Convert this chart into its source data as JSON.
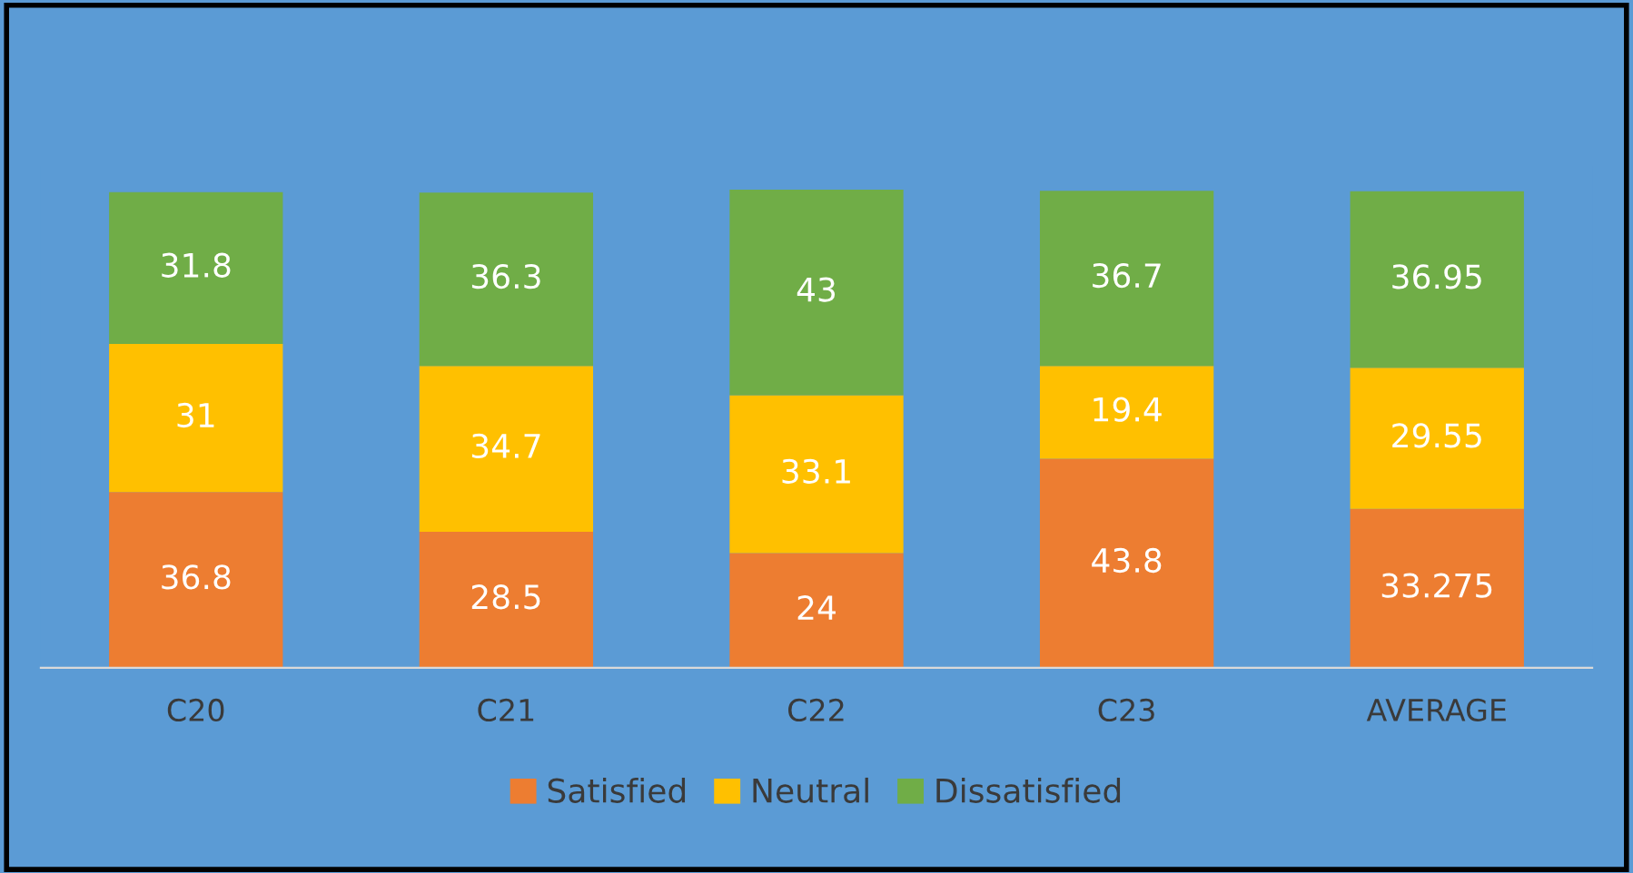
{
  "chart_data": {
    "type": "bar",
    "stacked": true,
    "categories": [
      "C20",
      "C21",
      "C22",
      "C23",
      "AVERAGE"
    ],
    "series": [
      {
        "name": "Satisfied",
        "color": "#ed7d31",
        "values": [
          36.8,
          28.5,
          24,
          43.8,
          33.275
        ]
      },
      {
        "name": "Neutral",
        "color": "#ffc000",
        "values": [
          31,
          34.7,
          33.1,
          19.4,
          29.55
        ]
      },
      {
        "name": "Dissatisfied",
        "color": "#70ad47",
        "values": [
          31.8,
          36.3,
          43,
          36.7,
          36.95
        ]
      }
    ],
    "tick_labels": "x",
    "data_labels": true,
    "legend": "bottom",
    "grid": false
  }
}
